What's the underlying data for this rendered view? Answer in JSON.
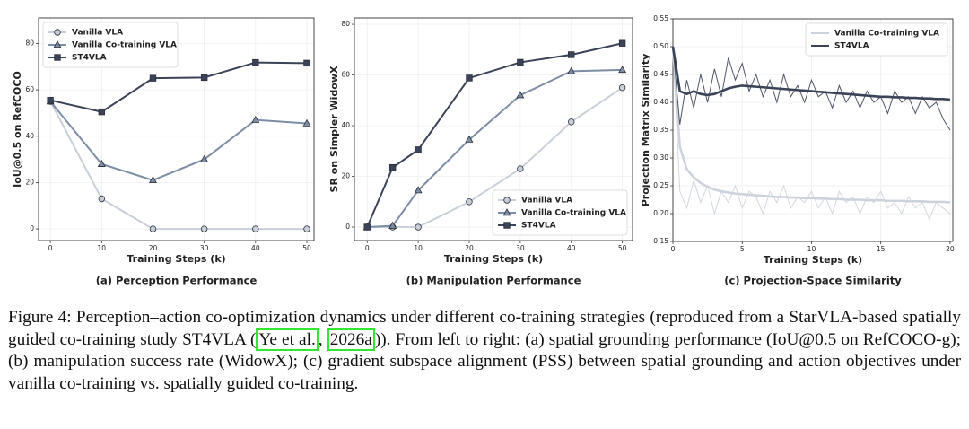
{
  "chart_data": [
    {
      "type": "line",
      "title": "(a) Perception Performance",
      "xlabel": "Training Steps (k)",
      "ylabel": "IoU@0.5 on RefCOCO",
      "x": [
        0,
        10,
        20,
        30,
        40,
        50
      ],
      "xlim": [
        -2.3,
        51.4
      ],
      "xticks": [
        0,
        10,
        20,
        30,
        40,
        50
      ],
      "ylim": [
        -5,
        91
      ],
      "yticks": [
        0,
        20,
        40,
        60,
        80
      ],
      "grid": true,
      "legend": "upper left",
      "series": [
        {
          "name": "Vanilla VLA",
          "color": "#c9cfd9",
          "marker": "o",
          "values": [
            55,
            13,
            0,
            0,
            0,
            0
          ]
        },
        {
          "name": "Vanilla Co-training VLA",
          "color": "#7d8da5",
          "marker": "^",
          "values": [
            55,
            28,
            21,
            30,
            47,
            45.5
          ]
        },
        {
          "name": "ST4VLA",
          "color": "#3a4357",
          "marker": "s",
          "values": [
            55.5,
            50.5,
            65,
            65.3,
            71.8,
            71.5
          ]
        }
      ]
    },
    {
      "type": "line",
      "title": "(b) Manipulation Performance",
      "xlabel": "Training Steps (k)",
      "ylabel": "SR on Simpler WidowX",
      "x": [
        0,
        5,
        10,
        20,
        30,
        40,
        50
      ],
      "xlim": [
        -2.5,
        52
      ],
      "xticks": [
        0,
        10,
        20,
        30,
        40,
        50
      ],
      "ylim": [
        -5.3,
        82.5
      ],
      "yticks": [
        0,
        20,
        40,
        60,
        80
      ],
      "grid": true,
      "legend": "lower right",
      "series": [
        {
          "name": "Vanilla VLA",
          "color": "#c9cfd9",
          "marker": "o",
          "values": [
            0,
            0,
            0,
            10,
            23,
            41.5,
            55
          ]
        },
        {
          "name": "Vanilla Co-training VLA",
          "color": "#7d8da5",
          "marker": "^",
          "values": [
            0,
            0.5,
            14.5,
            34.5,
            52,
            61.5,
            62
          ]
        },
        {
          "name": "ST4VLA",
          "color": "#3a4357",
          "marker": "s",
          "values": [
            0,
            23.5,
            30.5,
            58.8,
            65,
            68,
            72.5
          ]
        }
      ]
    },
    {
      "type": "line",
      "title": "(c) Projection-Space Similarity",
      "xlabel": "Training Steps (k)",
      "ylabel": "Projection Matrix Similarity",
      "x": [
        0,
        0.5,
        1,
        1.5,
        2,
        2.5,
        3,
        3.5,
        4,
        4.5,
        5,
        5.5,
        6,
        6.5,
        7,
        7.5,
        8,
        8.5,
        9,
        9.5,
        10,
        10.5,
        11,
        11.5,
        12,
        12.5,
        13,
        13.5,
        14,
        14.5,
        15,
        15.5,
        16,
        16.5,
        17,
        17.5,
        18,
        18.5,
        19,
        19.5,
        20
      ],
      "xlim": [
        0,
        20.2
      ],
      "xticks": [
        0,
        5,
        10,
        15,
        20
      ],
      "ylim": [
        0.15,
        0.55
      ],
      "yticks": [
        {
          "value": 0.15,
          "label": "0.15"
        },
        {
          "value": 0.2,
          "label": "0.20"
        },
        {
          "value": 0.25,
          "label": "0.25"
        },
        {
          "value": 0.3,
          "label": "0.30"
        },
        {
          "value": 0.35,
          "label": "0.35"
        },
        {
          "value": 0.4,
          "label": "0.40"
        },
        {
          "value": 0.45,
          "label": "0.45"
        },
        {
          "value": 0.5,
          "label": "0.50"
        },
        {
          "value": 0.55,
          "label": "0.55"
        }
      ],
      "grid": true,
      "legend": "upper right",
      "series": [
        {
          "name": "Vanilla Co-training VLA",
          "color": "#cdd3dc",
          "values": [
            0.5,
            0.32,
            0.28,
            0.265,
            0.255,
            0.248,
            0.243,
            0.24,
            0.238,
            0.236,
            0.235,
            0.234,
            0.233,
            0.232,
            0.231,
            0.23,
            0.23,
            0.229,
            0.229,
            0.228,
            0.228,
            0.227,
            0.227,
            0.226,
            0.226,
            0.225,
            0.225,
            0.225,
            0.224,
            0.224,
            0.224,
            0.223,
            0.223,
            0.223,
            0.222,
            0.222,
            0.222,
            0.221,
            0.221,
            0.221,
            0.22
          ],
          "raw_values": [
            0.5,
            0.24,
            0.21,
            0.26,
            0.22,
            0.25,
            0.2,
            0.24,
            0.22,
            0.25,
            0.21,
            0.24,
            0.23,
            0.2,
            0.24,
            0.22,
            0.25,
            0.21,
            0.23,
            0.22,
            0.24,
            0.21,
            0.23,
            0.2,
            0.24,
            0.22,
            0.23,
            0.2,
            0.23,
            0.22,
            0.24,
            0.21,
            0.22,
            0.2,
            0.23,
            0.21,
            0.22,
            0.19,
            0.22,
            0.21,
            0.2
          ]
        },
        {
          "name": "ST4VLA",
          "color": "#3a4357",
          "values": [
            0.5,
            0.42,
            0.415,
            0.42,
            0.415,
            0.413,
            0.415,
            0.42,
            0.425,
            0.428,
            0.43,
            0.429,
            0.428,
            0.427,
            0.426,
            0.425,
            0.424,
            0.423,
            0.422,
            0.421,
            0.42,
            0.419,
            0.418,
            0.417,
            0.416,
            0.415,
            0.414,
            0.413,
            0.412,
            0.411,
            0.41,
            0.41,
            0.409,
            0.409,
            0.408,
            0.408,
            0.407,
            0.407,
            0.406,
            0.406,
            0.405
          ],
          "raw_values": [
            0.5,
            0.36,
            0.44,
            0.39,
            0.45,
            0.4,
            0.46,
            0.41,
            0.48,
            0.44,
            0.47,
            0.42,
            0.45,
            0.41,
            0.44,
            0.4,
            0.45,
            0.41,
            0.43,
            0.4,
            0.44,
            0.41,
            0.42,
            0.39,
            0.43,
            0.4,
            0.42,
            0.39,
            0.42,
            0.4,
            0.41,
            0.38,
            0.42,
            0.4,
            0.41,
            0.38,
            0.41,
            0.39,
            0.4,
            0.37,
            0.35
          ]
        }
      ]
    }
  ],
  "caption": {
    "label": "Figure 4:",
    "before": "Perception–action co-optimization dynamics under different co-training strategies (reproduced from a StarVLA-based spatially guided co-training study ST4VLA (",
    "cite_author": "Ye et al.",
    "sep": ", ",
    "cite_year": "2026a",
    "after": ")). From left to right: (a) spatial grounding performance (IoU@0.5 on RefCOCO-g); (b) manipulation success rate (WidowX); (c) gradient subspace alignment (PSS) between spatial grounding and action objectives under vanilla co-training vs. spatially guided co-training."
  }
}
